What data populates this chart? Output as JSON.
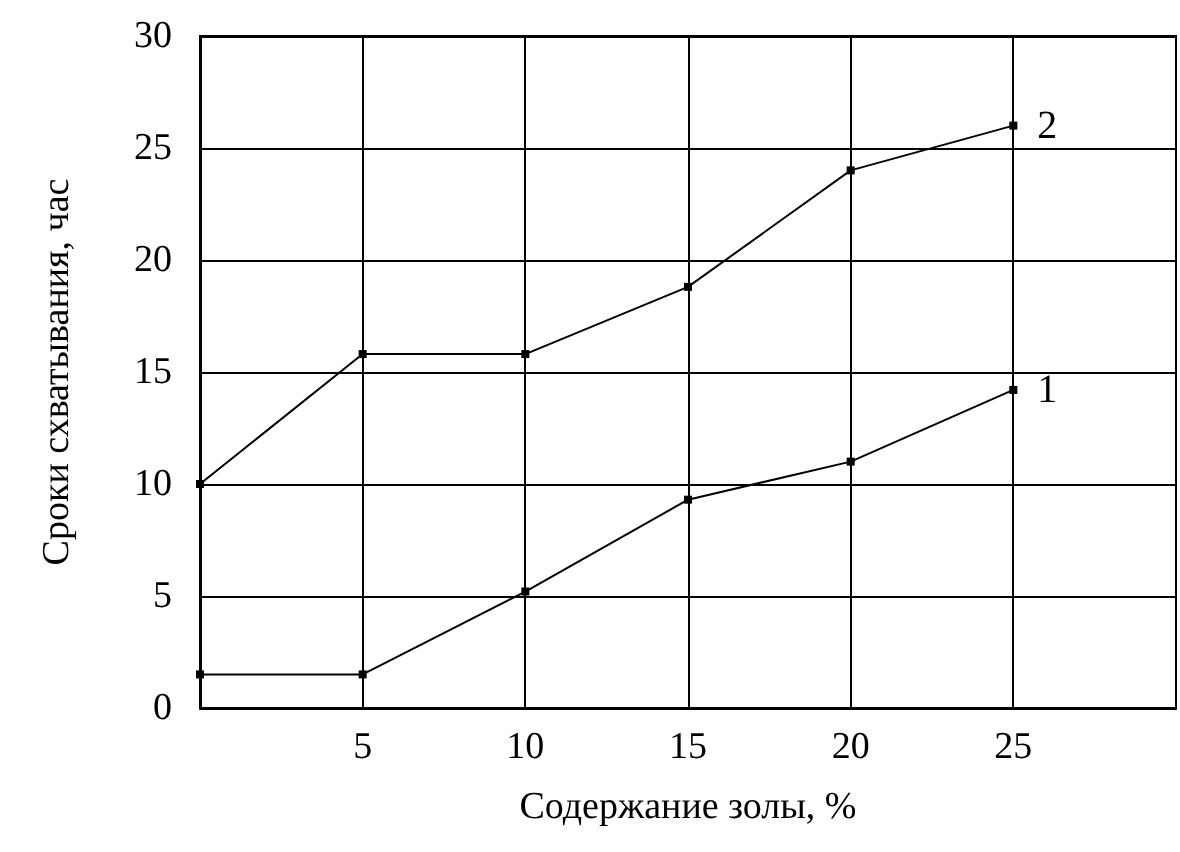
{
  "chart_data": {
    "type": "line",
    "xlabel": "Содержание золы, %",
    "ylabel": "Сроки схватывания, час",
    "x": [
      0,
      5,
      10,
      15,
      20,
      25
    ],
    "series": [
      {
        "name": "1",
        "color": "#000000",
        "values": [
          1.5,
          1.5,
          5.2,
          9.3,
          11,
          14.2
        ]
      },
      {
        "name": "2",
        "color": "#000000",
        "values": [
          10,
          15.8,
          15.8,
          18.8,
          24,
          26
        ]
      }
    ],
    "xlim": [
      0,
      30
    ],
    "xticks": [
      5,
      10,
      15,
      20,
      25
    ],
    "ylim": [
      0,
      30
    ],
    "yticks": [
      0,
      5,
      10,
      15,
      20,
      25,
      30
    ],
    "grid": true,
    "legend": false,
    "marker": "square",
    "line_style": "solid"
  }
}
